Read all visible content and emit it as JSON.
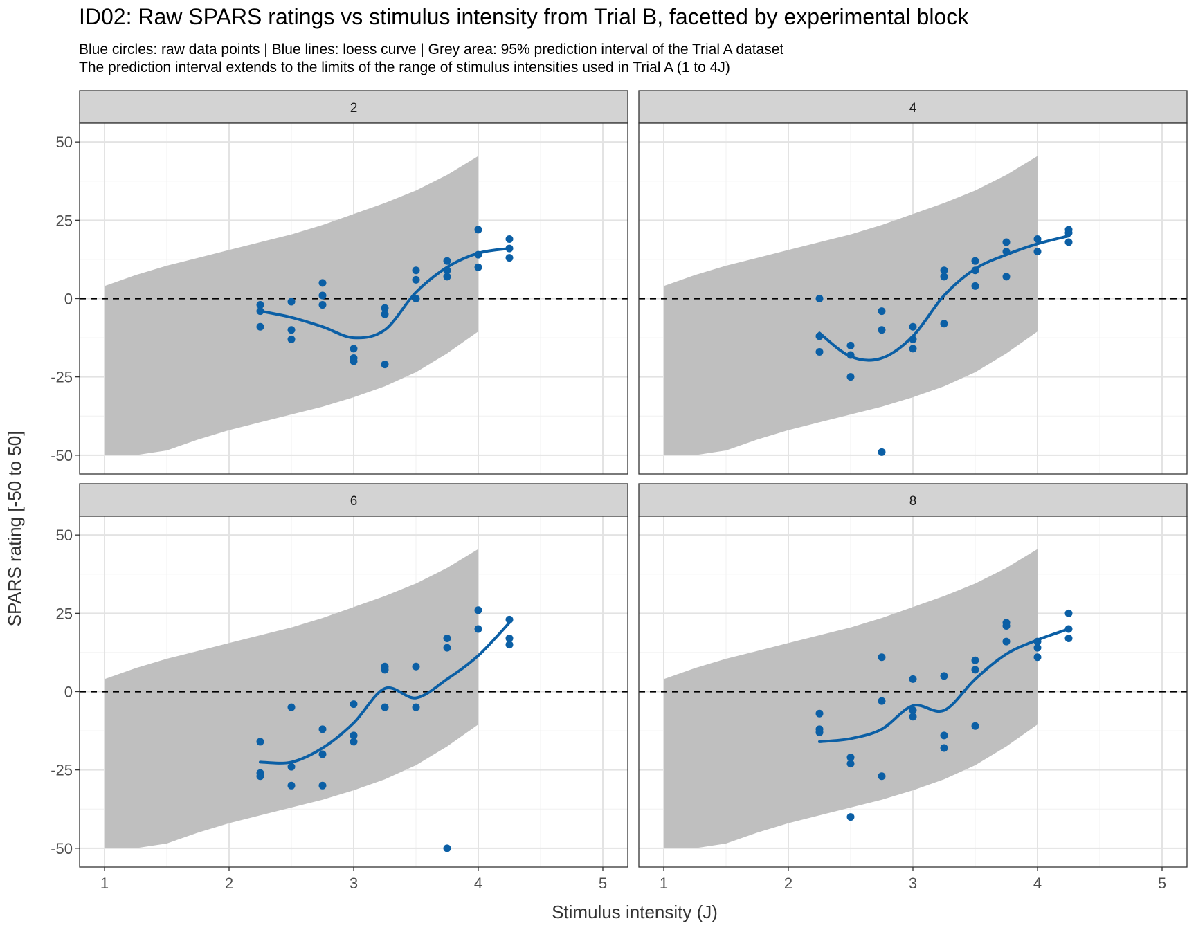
{
  "chart_data": {
    "type": "scatter",
    "title": "ID02: Raw SPARS ratings vs stimulus intensity from Trial B, facetted by experimental block",
    "subtitle_lines": [
      "Blue circles: raw data points | Blue lines: loess curve | Grey area: 95% prediction interval of the Trial A dataset",
      "The prediction interval extends to the limits of the range of stimulus intensities used in Trial A (1 to 4J)"
    ],
    "xlabel": "Stimulus intensity (J)",
    "ylabel": "SPARS rating [-50 to 50]",
    "xlim": [
      0.8,
      5.2
    ],
    "ylim": [
      -56,
      56
    ],
    "x_ticks": [
      1,
      2,
      3,
      4,
      5
    ],
    "y_ticks": [
      -50,
      -25,
      0,
      25,
      50
    ],
    "grid": true,
    "reference_line": {
      "y": 0,
      "style": "dashed"
    },
    "colors": {
      "points": "#0b5fa5",
      "line": "#0b5fa5",
      "band": "#bfbfbf",
      "strip": "#d3d3d3"
    },
    "prediction_interval": {
      "x": [
        1,
        1.25,
        1.5,
        1.75,
        2,
        2.25,
        2.5,
        2.75,
        3,
        3.25,
        3.5,
        3.75,
        4
      ],
      "upper": [
        4,
        7.5,
        10.5,
        13,
        15.5,
        18,
        20.5,
        23.5,
        27,
        30.5,
        34.5,
        39.5,
        45.5
      ],
      "lower": [
        -50,
        -50,
        -48.5,
        -45,
        -42,
        -39.5,
        -37,
        -34.5,
        -31.5,
        -28,
        -23.5,
        -17.5,
        -10.5
      ]
    },
    "facets": [
      {
        "label": "2",
        "points": [
          [
            2.25,
            -2
          ],
          [
            2.25,
            -4
          ],
          [
            2.25,
            -9
          ],
          [
            2.5,
            -1
          ],
          [
            2.5,
            -10
          ],
          [
            2.5,
            -13
          ],
          [
            2.75,
            5
          ],
          [
            2.75,
            1
          ],
          [
            2.75,
            -2
          ],
          [
            3,
            -16
          ],
          [
            3,
            -19
          ],
          [
            3,
            -20
          ],
          [
            3.25,
            -3
          ],
          [
            3.25,
            -5
          ],
          [
            3.25,
            -21
          ],
          [
            3.5,
            9
          ],
          [
            3.5,
            6
          ],
          [
            3.5,
            0
          ],
          [
            3.75,
            12
          ],
          [
            3.75,
            9
          ],
          [
            3.75,
            7
          ],
          [
            4,
            22
          ],
          [
            4,
            14
          ],
          [
            4,
            10
          ],
          [
            4.25,
            19
          ],
          [
            4.25,
            16
          ],
          [
            4.25,
            13
          ]
        ],
        "loess": [
          [
            2.25,
            -4
          ],
          [
            2.5,
            -6
          ],
          [
            2.75,
            -9
          ],
          [
            3,
            -12.5
          ],
          [
            3.25,
            -10
          ],
          [
            3.5,
            2
          ],
          [
            3.75,
            10
          ],
          [
            4,
            14.5
          ],
          [
            4.25,
            16
          ]
        ]
      },
      {
        "label": "4",
        "points": [
          [
            2.25,
            0
          ],
          [
            2.25,
            -12
          ],
          [
            2.25,
            -17
          ],
          [
            2.5,
            -15
          ],
          [
            2.5,
            -18
          ],
          [
            2.5,
            -25
          ],
          [
            2.75,
            -4
          ],
          [
            2.75,
            -10
          ],
          [
            2.75,
            -49
          ],
          [
            3,
            -9
          ],
          [
            3,
            -13
          ],
          [
            3,
            -16
          ],
          [
            3.25,
            9
          ],
          [
            3.25,
            7
          ],
          [
            3.25,
            -8
          ],
          [
            3.5,
            12
          ],
          [
            3.5,
            9
          ],
          [
            3.5,
            4
          ],
          [
            3.75,
            18
          ],
          [
            3.75,
            15
          ],
          [
            3.75,
            7
          ],
          [
            4,
            19
          ],
          [
            4,
            15
          ],
          [
            4.25,
            22
          ],
          [
            4.25,
            21
          ],
          [
            4.25,
            18
          ]
        ],
        "loess": [
          [
            2.25,
            -11
          ],
          [
            2.5,
            -18.5
          ],
          [
            2.75,
            -19
          ],
          [
            3,
            -12
          ],
          [
            3.25,
            1
          ],
          [
            3.5,
            9.5
          ],
          [
            3.75,
            14
          ],
          [
            4,
            17.5
          ],
          [
            4.25,
            20
          ]
        ]
      },
      {
        "label": "6",
        "points": [
          [
            2.25,
            -16
          ],
          [
            2.25,
            -26
          ],
          [
            2.25,
            -27
          ],
          [
            2.5,
            -5
          ],
          [
            2.5,
            -24
          ],
          [
            2.5,
            -30
          ],
          [
            2.75,
            -12
          ],
          [
            2.75,
            -20
          ],
          [
            2.75,
            -30
          ],
          [
            3,
            -4
          ],
          [
            3,
            -14
          ],
          [
            3,
            -16
          ],
          [
            3.25,
            8
          ],
          [
            3.25,
            7
          ],
          [
            3.25,
            -5
          ],
          [
            3.5,
            8
          ],
          [
            3.5,
            -5
          ],
          [
            3.75,
            17
          ],
          [
            3.75,
            14
          ],
          [
            3.75,
            -50
          ],
          [
            4,
            26
          ],
          [
            4,
            20
          ],
          [
            4.25,
            23
          ],
          [
            4.25,
            17
          ],
          [
            4.25,
            15
          ]
        ],
        "loess": [
          [
            2.25,
            -22.5
          ],
          [
            2.5,
            -22.5
          ],
          [
            2.75,
            -18
          ],
          [
            3,
            -10
          ],
          [
            3.25,
            1
          ],
          [
            3.5,
            -2
          ],
          [
            3.75,
            4
          ],
          [
            4,
            11.5
          ],
          [
            4.25,
            22
          ]
        ]
      },
      {
        "label": "8",
        "points": [
          [
            2.25,
            -7
          ],
          [
            2.25,
            -12
          ],
          [
            2.25,
            -13
          ],
          [
            2.5,
            -21
          ],
          [
            2.5,
            -23
          ],
          [
            2.5,
            -40
          ],
          [
            2.75,
            11
          ],
          [
            2.75,
            -3
          ],
          [
            2.75,
            -27
          ],
          [
            3,
            4
          ],
          [
            3,
            -6
          ],
          [
            3,
            -8
          ],
          [
            3.25,
            5
          ],
          [
            3.25,
            -14
          ],
          [
            3.25,
            -18
          ],
          [
            3.5,
            10
          ],
          [
            3.5,
            7
          ],
          [
            3.5,
            -11
          ],
          [
            3.75,
            22
          ],
          [
            3.75,
            21
          ],
          [
            3.75,
            16
          ],
          [
            4,
            16
          ],
          [
            4,
            14
          ],
          [
            4,
            11
          ],
          [
            4.25,
            25
          ],
          [
            4.25,
            20
          ],
          [
            4.25,
            17
          ]
        ],
        "loess": [
          [
            2.25,
            -16
          ],
          [
            2.5,
            -15
          ],
          [
            2.75,
            -12
          ],
          [
            3,
            -4.5
          ],
          [
            3.25,
            -6
          ],
          [
            3.5,
            4
          ],
          [
            3.75,
            12
          ],
          [
            4,
            16.5
          ],
          [
            4.25,
            20
          ]
        ]
      }
    ]
  }
}
